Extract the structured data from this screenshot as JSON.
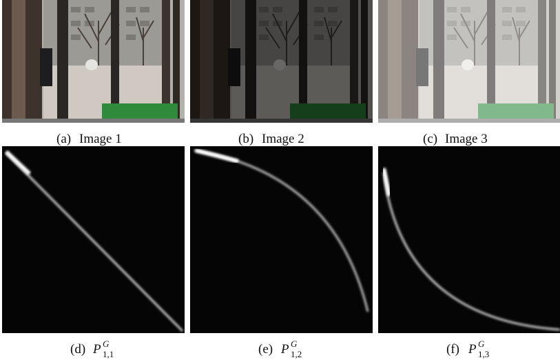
{
  "panels": [
    {
      "label": "(a)",
      "caption": "Image 1"
    },
    {
      "label": "(b)",
      "caption": "Image 2"
    },
    {
      "label": "(c)",
      "caption": "Image 3"
    },
    {
      "label": "(d)",
      "symbol": "P",
      "superscript": "G",
      "subscript": "1,1"
    },
    {
      "label": "(e)",
      "symbol": "P",
      "superscript": "G",
      "subscript": "1,2"
    },
    {
      "label": "(f)",
      "symbol": "P",
      "superscript": "G",
      "subscript": "1,3"
    }
  ]
}
